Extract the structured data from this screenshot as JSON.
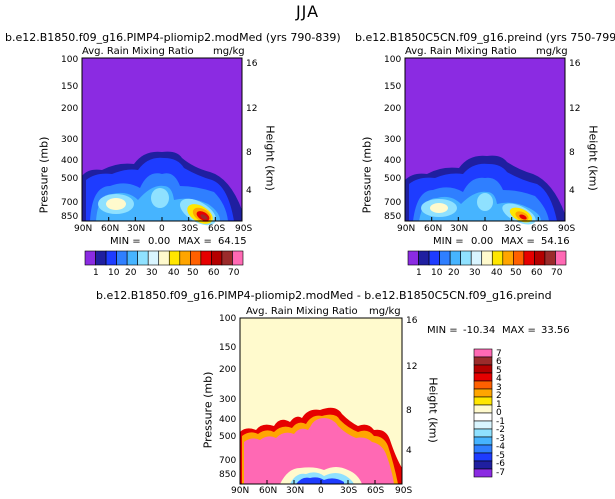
{
  "page_title": "JJA",
  "chart_data": [
    {
      "type": "heatmap",
      "title": "b.e12.B1850.f09_g16.PIMP4-pliomip2.modMed (yrs 790-839)",
      "subtitle": "Avg. Rain Mixing Ratio",
      "units": "mg/kg",
      "xlabel": "",
      "ylabel": "Pressure (mb)",
      "y2label": "Height (km)",
      "x_ticks": [
        "90N",
        "60N",
        "30N",
        "0",
        "30S",
        "60S",
        "90S"
      ],
      "y_ticks": [
        "100",
        "150",
        "200",
        "300",
        "400",
        "500",
        "700",
        "850"
      ],
      "y2_ticks": [
        "16",
        "12",
        "8",
        "4"
      ],
      "min_label": "MIN =",
      "min_value": "0.00",
      "max_label": "MAX =",
      "max_value": "64.15",
      "colorbar": {
        "orientation": "horizontal",
        "labels": [
          "1",
          "10",
          "20",
          "30",
          "40",
          "50",
          "60",
          "70"
        ],
        "colors": [
          "#8b2be2",
          "#1f1fa0",
          "#1e3cff",
          "#2f7fff",
          "#46b4ff",
          "#8fe1ff",
          "#d9f5ff",
          "#fffacd",
          "#ffe600",
          "#ffa500",
          "#ff6000",
          "#e60000",
          "#b40000",
          "#9b2b2b",
          "#ff69b4"
        ]
      }
    },
    {
      "type": "heatmap",
      "title": "b.e12.B1850C5CN.f09_g16.preind (yrs 750-799)",
      "subtitle": "Avg. Rain Mixing Ratio",
      "units": "mg/kg",
      "xlabel": "",
      "ylabel": "Pressure (mb)",
      "y2label": "Height (km)",
      "x_ticks": [
        "90N",
        "60N",
        "30N",
        "0",
        "30S",
        "60S",
        "90S"
      ],
      "y_ticks": [
        "100",
        "150",
        "200",
        "300",
        "400",
        "500",
        "700",
        "850"
      ],
      "y2_ticks": [
        "16",
        "12",
        "8",
        "4"
      ],
      "min_label": "MIN =",
      "min_value": "0.00",
      "max_label": "MAX =",
      "max_value": "54.16",
      "colorbar": {
        "orientation": "horizontal",
        "labels": [
          "1",
          "10",
          "20",
          "30",
          "40",
          "50",
          "60",
          "70"
        ],
        "colors": [
          "#8b2be2",
          "#1f1fa0",
          "#1e3cff",
          "#2f7fff",
          "#46b4ff",
          "#8fe1ff",
          "#d9f5ff",
          "#fffacd",
          "#ffe600",
          "#ffa500",
          "#ff6000",
          "#e60000",
          "#b40000",
          "#9b2b2b",
          "#ff69b4"
        ]
      }
    },
    {
      "type": "heatmap",
      "title": "b.e12.B1850.f09_g16.PIMP4-pliomip2.modMed - b.e12.B1850C5CN.f09_g16.preind",
      "subtitle": "Avg. Rain Mixing Ratio",
      "units": "mg/kg",
      "xlabel": "",
      "ylabel": "Pressure (mb)",
      "y2label": "Height (km)",
      "x_ticks": [
        "90N",
        "60N",
        "30N",
        "0",
        "30S",
        "60S",
        "90S"
      ],
      "y_ticks": [
        "100",
        "150",
        "200",
        "300",
        "400",
        "500",
        "700",
        "850"
      ],
      "y2_ticks": [
        "16",
        "12",
        "8",
        "4"
      ],
      "min_label": "MIN =",
      "min_value": "-10.34",
      "max_label": "MAX =",
      "max_value": "33.56",
      "colorbar": {
        "orientation": "vertical",
        "labels": [
          "7",
          "6",
          "5",
          "4",
          "3",
          "2",
          "1",
          "0",
          "-1",
          "-2",
          "-3",
          "-4",
          "-5",
          "-6",
          "-7"
        ],
        "colors": [
          "#ff69b4",
          "#9b2b2b",
          "#b40000",
          "#e60000",
          "#ff6000",
          "#ffa500",
          "#ffe600",
          "#fffacd",
          "#ffffff",
          "#d9f5ff",
          "#8fe1ff",
          "#46b4ff",
          "#2f7fff",
          "#1e3cff",
          "#1f1fa0",
          "#8b2be2"
        ]
      }
    }
  ]
}
